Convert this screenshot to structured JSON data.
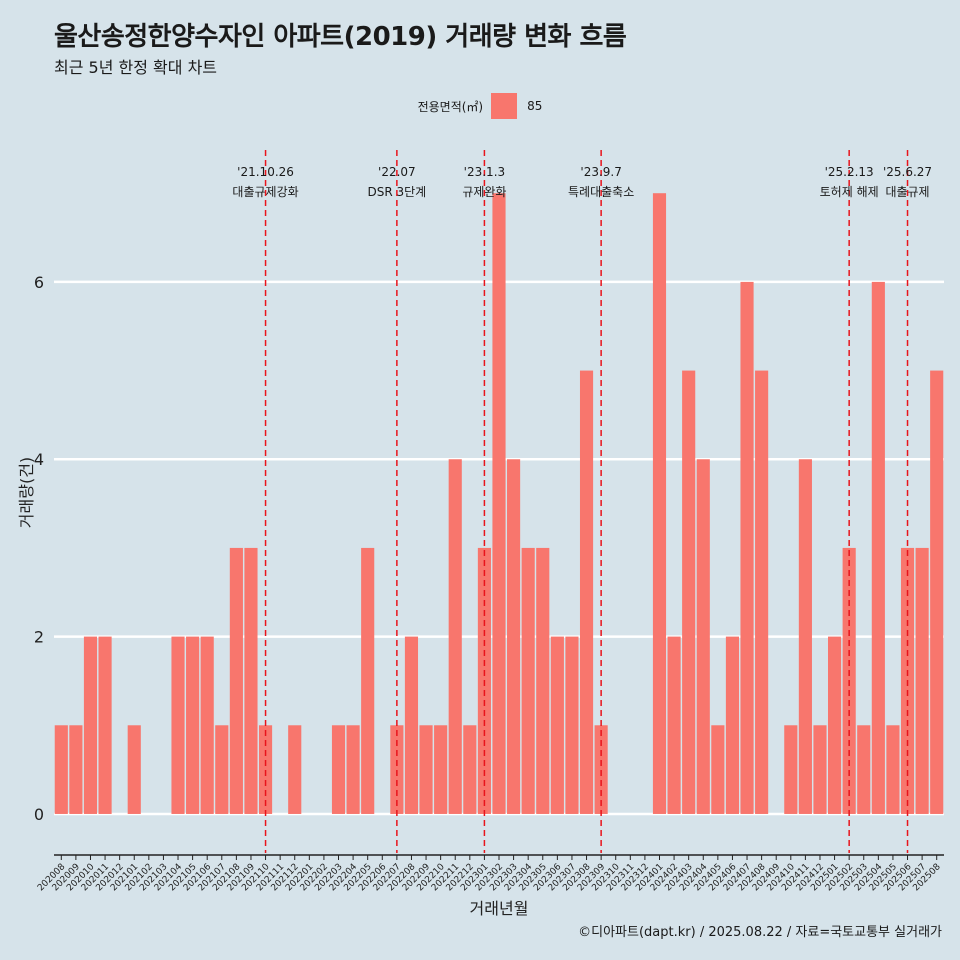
{
  "header": {
    "title": "울산송정한양수자인 아파트(2019) 거래량 변화 흐름",
    "subtitle": "최근 5년 한정 확대 차트"
  },
  "legend": {
    "title": "전용면적(㎡)",
    "key_label": "85",
    "color": "#f8766d"
  },
  "caption": "©디아파트(dapt.kr) / 2025.08.22 / 자료=국토교통부 실거래가",
  "chart_data": {
    "type": "bar",
    "xlabel": "거래년월",
    "ylabel": "거래량(건)",
    "ylim": [
      -0.35,
      7.6
    ],
    "yticks": [
      0,
      2,
      4,
      6
    ],
    "grid": true,
    "legend_position": "top",
    "bar_color": "#f8766d",
    "categories": [
      "202008",
      "202009",
      "202010",
      "202011",
      "202012",
      "202101",
      "202102",
      "202103",
      "202104",
      "202105",
      "202106",
      "202107",
      "202108",
      "202109",
      "202110",
      "202111",
      "202112",
      "202201",
      "202202",
      "202203",
      "202204",
      "202205",
      "202206",
      "202207",
      "202208",
      "202209",
      "202210",
      "202211",
      "202212",
      "202301",
      "202302",
      "202303",
      "202304",
      "202305",
      "202306",
      "202307",
      "202308",
      "202309",
      "202310",
      "202311",
      "202312",
      "202401",
      "202402",
      "202403",
      "202404",
      "202405",
      "202406",
      "202407",
      "202408",
      "202409",
      "202410",
      "202411",
      "202412",
      "202501",
      "202502",
      "202503",
      "202504",
      "202505",
      "202506",
      "202507",
      "202508"
    ],
    "series": [
      {
        "name": "85",
        "values": [
          1,
          1,
          2,
          2,
          0,
          1,
          0,
          0,
          2,
          2,
          2,
          1,
          3,
          3,
          1,
          0,
          1,
          0,
          0,
          1,
          1,
          3,
          0,
          1,
          2,
          1,
          1,
          4,
          1,
          3,
          7,
          4,
          3,
          3,
          2,
          2,
          5,
          1,
          0,
          0,
          0,
          7,
          2,
          5,
          4,
          1,
          2,
          6,
          5,
          0,
          1,
          4,
          1,
          2,
          3,
          1,
          6,
          1,
          3,
          3,
          5
        ]
      }
    ],
    "annotations": [
      {
        "date": "'21.10.26",
        "label": "대출규제강화",
        "category": "202110"
      },
      {
        "date": "'22.07",
        "label": "DSR 3단계",
        "category": "202207"
      },
      {
        "date": "'23.1.3",
        "label": "규제완화",
        "category": "202301"
      },
      {
        "date": "'23.9.7",
        "label": "특례대출축소",
        "category": "202309"
      },
      {
        "date": "'25.2.13",
        "label": "토허제 해제",
        "category": "202502"
      },
      {
        "date": "'25.6.27",
        "label": "대출규제",
        "category": "202506"
      }
    ],
    "annotation_line_color": "#e8141c"
  }
}
